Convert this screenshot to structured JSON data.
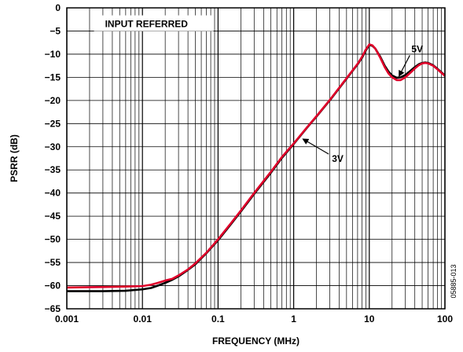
{
  "chart_data": {
    "type": "line",
    "xlabel": "FREQUENCY (MHz)",
    "ylabel": "PSRR (dB)",
    "x_scale": "log",
    "xlim": [
      0.001,
      100
    ],
    "ylim": [
      -65,
      0
    ],
    "grid": true,
    "x_tick_labels": [
      "0.001",
      "0.01",
      "0.1",
      "1",
      "10",
      "100"
    ],
    "y_tick_labels": [
      "0",
      "−5",
      "−10",
      "−15",
      "−20",
      "−25",
      "−30",
      "−35",
      "−40",
      "−45",
      "−50",
      "−55",
      "−60",
      "−65"
    ],
    "series": [
      {
        "name": "5V",
        "color": "#000000",
        "x": [
          0.001,
          0.003,
          0.006,
          0.01,
          0.013,
          0.016,
          0.02,
          0.025,
          0.03,
          0.04,
          0.05,
          0.07,
          0.1,
          0.15,
          0.2,
          0.3,
          0.5,
          0.7,
          1,
          1.5,
          2,
          3,
          5,
          7,
          8,
          9,
          10,
          11,
          12,
          14,
          16,
          18,
          20,
          23,
          26,
          30,
          35,
          40,
          45,
          50,
          55,
          60,
          70,
          80,
          100
        ],
        "y": [
          -61.2,
          -61.2,
          -61.1,
          -60.8,
          -60.5,
          -60.0,
          -59.4,
          -58.7,
          -58.0,
          -56.6,
          -55.4,
          -53.0,
          -50.2,
          -46.6,
          -44.0,
          -40.2,
          -35.6,
          -32.4,
          -29.4,
          -25.9,
          -23.5,
          -20.0,
          -15.3,
          -12.2,
          -10.8,
          -9.2,
          -8.0,
          -8.2,
          -8.8,
          -10.6,
          -12.5,
          -13.8,
          -14.6,
          -15.1,
          -15.0,
          -14.5,
          -13.6,
          -12.8,
          -12.2,
          -11.9,
          -11.8,
          -11.9,
          -12.4,
          -13.2,
          -14.6
        ]
      },
      {
        "name": "3V",
        "color": "#e0002a",
        "x": [
          0.001,
          0.003,
          0.006,
          0.01,
          0.013,
          0.016,
          0.02,
          0.025,
          0.03,
          0.04,
          0.05,
          0.07,
          0.1,
          0.15,
          0.2,
          0.3,
          0.5,
          0.7,
          1,
          1.5,
          2,
          3,
          5,
          7,
          8,
          9,
          10,
          11,
          12,
          14,
          16,
          18,
          20,
          23,
          26,
          30,
          35,
          40,
          45,
          50,
          55,
          60,
          70,
          80,
          100
        ],
        "y": [
          -60.4,
          -60.3,
          -60.2,
          -60.1,
          -59.8,
          -59.4,
          -58.9,
          -58.5,
          -57.8,
          -56.5,
          -55.2,
          -52.9,
          -50.0,
          -46.4,
          -43.8,
          -40.0,
          -35.4,
          -32.2,
          -29.3,
          -25.8,
          -23.4,
          -19.9,
          -15.2,
          -12.1,
          -10.6,
          -9.0,
          -7.9,
          -8.1,
          -8.8,
          -10.8,
          -12.8,
          -14.2,
          -15.0,
          -15.6,
          -15.6,
          -15.0,
          -14.0,
          -13.1,
          -12.4,
          -12.0,
          -11.9,
          -12.0,
          -12.5,
          -13.3,
          -14.7
        ]
      }
    ],
    "annotations": [
      {
        "text": "INPUT REFERRED",
        "x": 0.0032,
        "y": -4.0
      },
      {
        "text": "5V",
        "x": 36,
        "y": -8.9,
        "arrow_to": [
          25,
          -14.6
        ]
      },
      {
        "text": "3V",
        "x": 3.2,
        "y": -32.6,
        "arrow_to": [
          1.35,
          -28.4
        ]
      }
    ],
    "figure_id": "05885-013"
  }
}
